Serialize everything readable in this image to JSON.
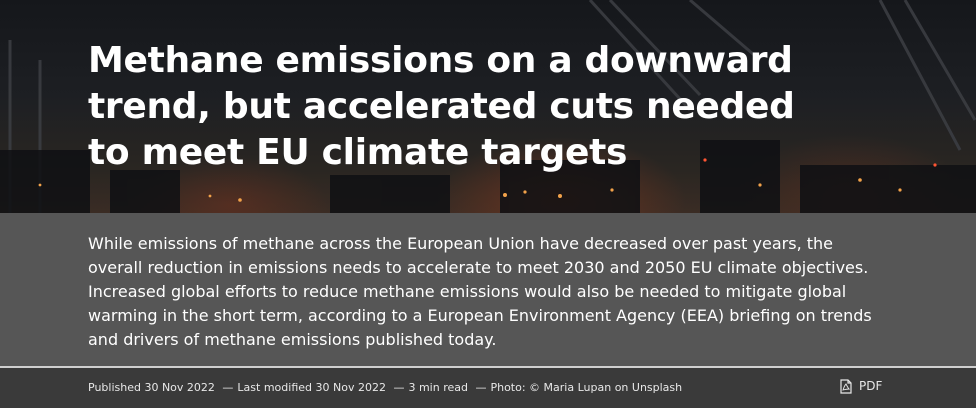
{
  "hero": {
    "title": "Methane emissions on a downward trend, but accelerated cuts needed to meet EU climate targets"
  },
  "lead": {
    "text": "While emissions of methane across the European Union have decreased over past years, the overall reduction in emissions needs to accelerate to meet 2030 and 2050 EU climate objectives. Increased global efforts to reduce methane emissions would also be needed to mitigate global warming in the short term, according to a European Environment Agency (EEA) briefing on trends and drivers of methane emissions published today."
  },
  "meta": {
    "published": "Published 30 Nov 2022",
    "separator": "—",
    "modified": "Last modified 30 Nov 2022",
    "read_time": "3 min read",
    "photo_credit": "Photo: © Maria Lupan on Unsplash",
    "pdf_label": "PDF",
    "pdf_icon": "pdf-file-icon"
  },
  "colors": {
    "lead_bg": "#565656",
    "meta_bg": "#3a3a3a",
    "text": "#ffffff"
  }
}
